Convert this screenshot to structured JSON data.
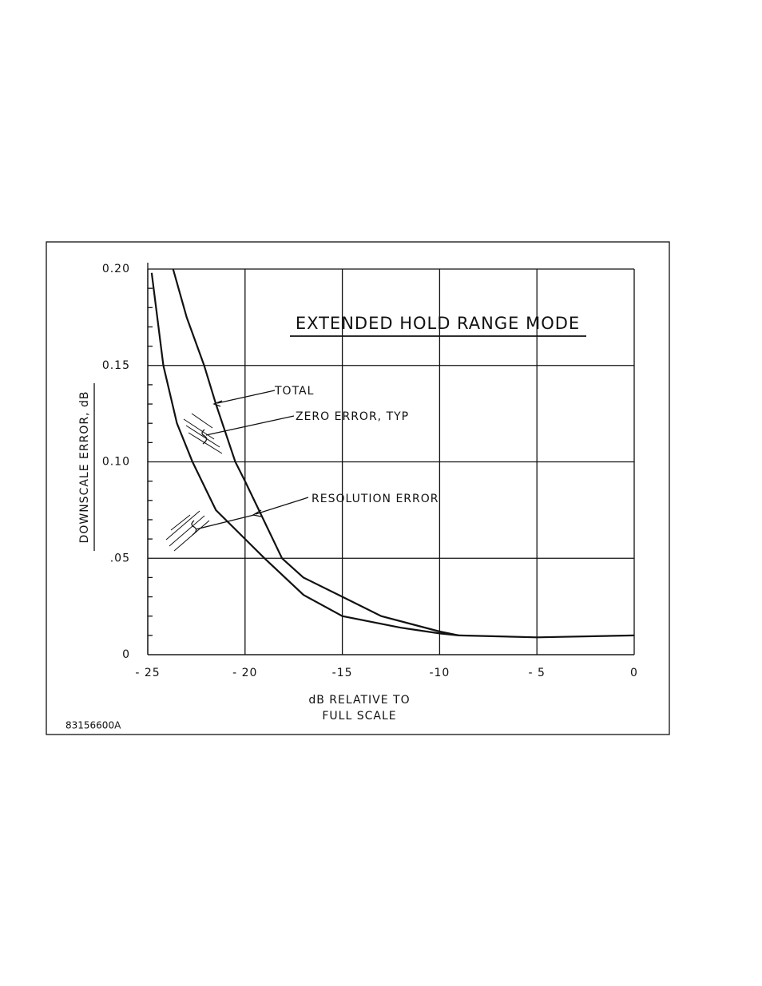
{
  "chart_data": {
    "type": "line",
    "title": "EXTENDED HOLD RANGE MODE",
    "y_label": "DOWNSCALE ERROR, dB",
    "x_label": [
      "dB RELATIVE TO",
      "FULL SCALE"
    ],
    "figure_id": "83156600A",
    "annotations": [
      "TOTAL",
      "ZERO ERROR, TYP",
      "RESOLUTION ERROR"
    ],
    "xlim": [
      -25,
      0
    ],
    "ylim": [
      0,
      0.2
    ],
    "xticks": [
      {
        "value": -25,
        "label": "- 25"
      },
      {
        "value": -20,
        "label": "- 20"
      },
      {
        "value": -15,
        "label": "-15"
      },
      {
        "value": -10,
        "label": "-10"
      },
      {
        "value": -5,
        "label": "- 5"
      },
      0
    ],
    "yticks": [
      0,
      {
        "value": 0.05,
        "label": ".05"
      },
      {
        "value": 0.1,
        "label": "0.10"
      },
      {
        "value": 0.15,
        "label": "0.15"
      },
      {
        "value": 0.2,
        "label": "0.20"
      }
    ],
    "y_minor_ticks": [
      0.01,
      0.02,
      0.03,
      0.04,
      0.06,
      0.07,
      0.08,
      0.09,
      0.11,
      0.12,
      0.13,
      0.14,
      0.16,
      0.17,
      0.18,
      0.19
    ],
    "grid": true,
    "series": [
      {
        "name": "TOTAL",
        "color": "#111111",
        "x": [
          -23.7,
          -23,
          -22.1,
          -21.5,
          -20.5,
          -20,
          -18.1,
          -17,
          -15,
          -13,
          -10,
          -9,
          -5,
          0
        ],
        "values": [
          0.2,
          0.175,
          0.15,
          0.13,
          0.1,
          0.09,
          0.05,
          0.04,
          0.03,
          0.02,
          0.012,
          0.01,
          0.009,
          0.01
        ]
      },
      {
        "name": "RESOLUTION ERROR",
        "color": "#111111",
        "x": [
          -24.8,
          -24.2,
          -23.5,
          -22.7,
          -21.5,
          -20,
          -19,
          -17,
          -15,
          -12,
          -10,
          -9
        ],
        "values": [
          0.198,
          0.15,
          0.12,
          0.1,
          0.075,
          0.06,
          0.05,
          0.031,
          0.02,
          0.014,
          0.011,
          0.01
        ]
      }
    ]
  }
}
